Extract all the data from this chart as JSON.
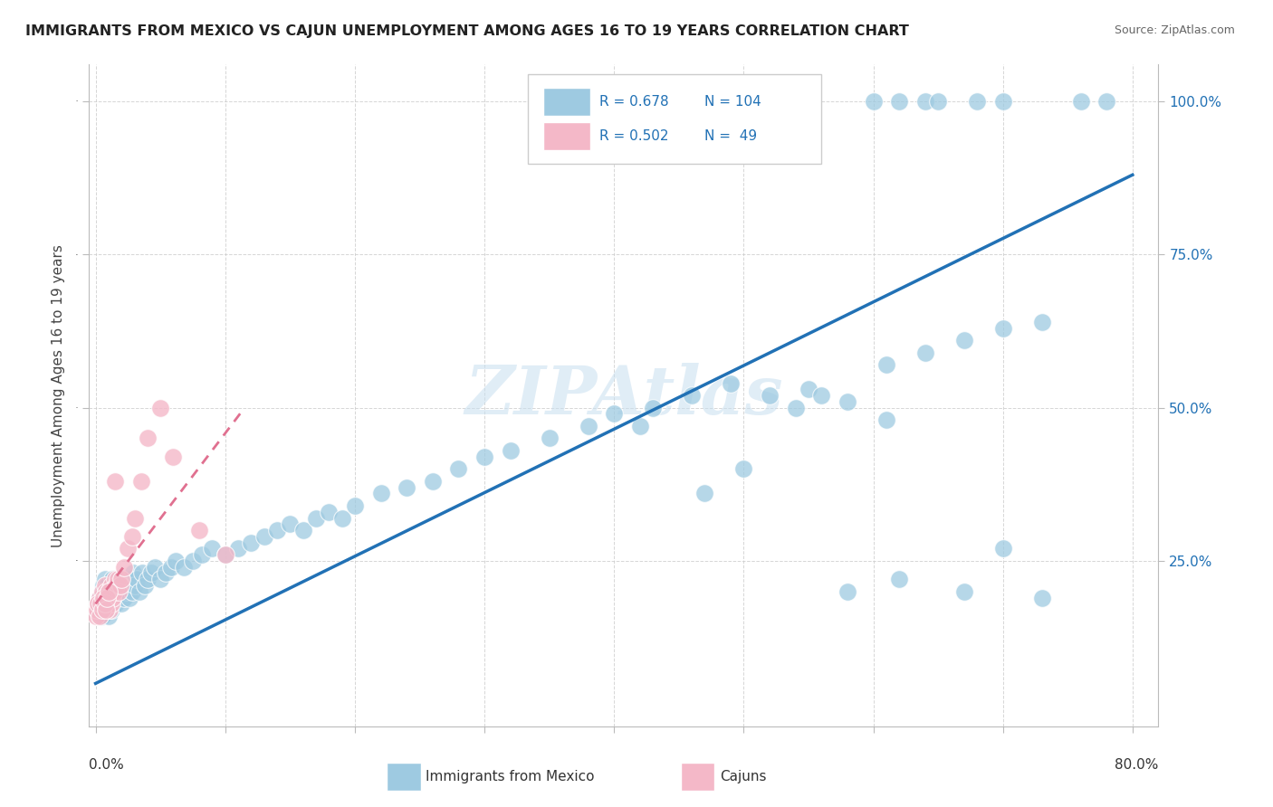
{
  "title": "IMMIGRANTS FROM MEXICO VS CAJUN UNEMPLOYMENT AMONG AGES 16 TO 19 YEARS CORRELATION CHART",
  "source": "Source: ZipAtlas.com",
  "ylabel": "Unemployment Among Ages 16 to 19 years",
  "legend_blue_r": "0.678",
  "legend_blue_n": "104",
  "legend_pink_r": "0.502",
  "legend_pink_n": "49",
  "blue_color": "#9ecae1",
  "pink_color": "#f4b8c8",
  "blue_line_color": "#2171b5",
  "pink_line_color": "#e07090",
  "watermark": "ZIPAtlas",
  "xlim": [
    0.0,
    0.8
  ],
  "ylim": [
    0.0,
    1.05
  ],
  "blue_line_x0": 0.0,
  "blue_line_y0": 0.05,
  "blue_line_x1": 0.8,
  "blue_line_y1": 0.88,
  "pink_line_x0": 0.0,
  "pink_line_y0": 0.18,
  "pink_line_x1": 0.115,
  "pink_line_y1": 0.5,
  "blue_x": [
    0.002,
    0.003,
    0.004,
    0.005,
    0.005,
    0.006,
    0.006,
    0.007,
    0.007,
    0.008,
    0.008,
    0.009,
    0.009,
    0.01,
    0.01,
    0.011,
    0.011,
    0.012,
    0.012,
    0.013,
    0.013,
    0.014,
    0.015,
    0.015,
    0.016,
    0.017,
    0.018,
    0.019,
    0.02,
    0.021,
    0.022,
    0.023,
    0.024,
    0.025,
    0.026,
    0.027,
    0.028,
    0.029,
    0.03,
    0.032,
    0.034,
    0.036,
    0.038,
    0.04,
    0.043,
    0.046,
    0.05,
    0.054,
    0.058,
    0.062,
    0.068,
    0.075,
    0.082,
    0.09,
    0.1,
    0.11,
    0.12,
    0.13,
    0.14,
    0.15,
    0.16,
    0.17,
    0.18,
    0.19,
    0.2,
    0.22,
    0.24,
    0.26,
    0.28,
    0.3,
    0.32,
    0.35,
    0.38,
    0.4,
    0.43,
    0.46,
    0.49,
    0.52,
    0.55,
    0.58,
    0.61,
    0.64,
    0.67,
    0.7,
    0.73,
    0.6,
    0.62,
    0.64,
    0.65,
    0.68,
    0.7,
    0.76,
    0.78,
    0.42,
    0.47,
    0.5,
    0.54,
    0.58,
    0.62,
    0.67,
    0.7,
    0.73,
    0.56,
    0.61
  ],
  "blue_y": [
    0.18,
    0.19,
    0.17,
    0.2,
    0.16,
    0.18,
    0.21,
    0.19,
    0.22,
    0.17,
    0.2,
    0.18,
    0.21,
    0.16,
    0.19,
    0.18,
    0.2,
    0.17,
    0.21,
    0.18,
    0.22,
    0.2,
    0.19,
    0.21,
    0.18,
    0.2,
    0.19,
    0.21,
    0.18,
    0.2,
    0.19,
    0.22,
    0.2,
    0.21,
    0.19,
    0.22,
    0.2,
    0.23,
    0.21,
    0.22,
    0.2,
    0.23,
    0.21,
    0.22,
    0.23,
    0.24,
    0.22,
    0.23,
    0.24,
    0.25,
    0.24,
    0.25,
    0.26,
    0.27,
    0.26,
    0.27,
    0.28,
    0.29,
    0.3,
    0.31,
    0.3,
    0.32,
    0.33,
    0.32,
    0.34,
    0.36,
    0.37,
    0.38,
    0.4,
    0.42,
    0.43,
    0.45,
    0.47,
    0.49,
    0.5,
    0.52,
    0.54,
    0.52,
    0.53,
    0.51,
    0.57,
    0.59,
    0.61,
    0.63,
    0.64,
    1.0,
    1.0,
    1.0,
    1.0,
    1.0,
    1.0,
    1.0,
    1.0,
    0.47,
    0.36,
    0.4,
    0.5,
    0.2,
    0.22,
    0.2,
    0.27,
    0.19,
    0.52,
    0.48
  ],
  "pink_x": [
    0.001,
    0.002,
    0.003,
    0.004,
    0.005,
    0.005,
    0.006,
    0.007,
    0.007,
    0.008,
    0.008,
    0.009,
    0.009,
    0.01,
    0.01,
    0.011,
    0.011,
    0.012,
    0.012,
    0.013,
    0.014,
    0.015,
    0.016,
    0.017,
    0.018,
    0.019,
    0.02,
    0.022,
    0.025,
    0.028,
    0.03,
    0.035,
    0.04,
    0.05,
    0.06,
    0.08,
    0.1,
    0.0,
    0.001,
    0.002,
    0.003,
    0.004,
    0.005,
    0.006,
    0.007,
    0.008,
    0.009,
    0.01,
    0.015
  ],
  "pink_y": [
    0.17,
    0.18,
    0.19,
    0.17,
    0.18,
    0.2,
    0.17,
    0.19,
    0.21,
    0.18,
    0.2,
    0.17,
    0.19,
    0.18,
    0.2,
    0.17,
    0.19,
    0.18,
    0.21,
    0.19,
    0.2,
    0.22,
    0.21,
    0.22,
    0.2,
    0.21,
    0.22,
    0.24,
    0.27,
    0.29,
    0.32,
    0.38,
    0.45,
    0.5,
    0.42,
    0.3,
    0.26,
    0.16,
    0.17,
    0.18,
    0.16,
    0.18,
    0.17,
    0.19,
    0.18,
    0.17,
    0.19,
    0.2,
    0.38
  ]
}
